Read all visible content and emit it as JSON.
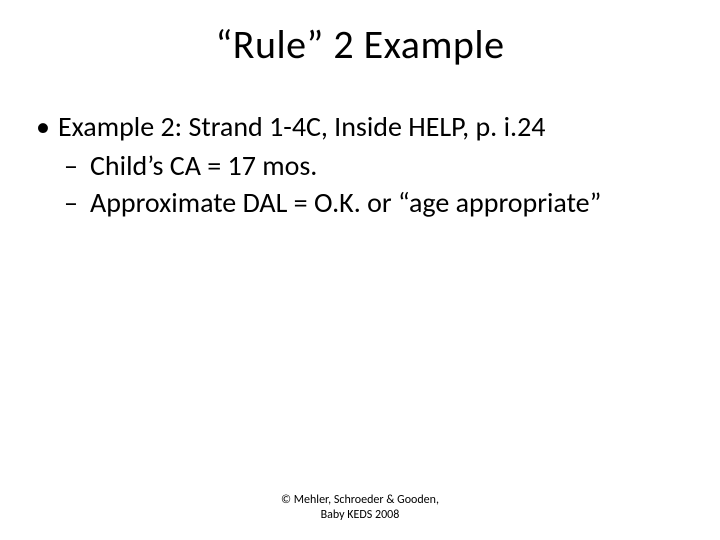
{
  "slide": {
    "title": "“Rule” 2 Example",
    "bullets": {
      "main": "Example 2:  Strand 1-4C, Inside HELP, p. i.24",
      "sub1": "Child’s CA = 17 mos.",
      "sub2": "Approximate DAL = O.K. or “age appropriate”"
    },
    "footer": {
      "line1": "© Mehler, Schroeder & Gooden,",
      "line2": "Baby KEDS 2008"
    }
  },
  "style": {
    "background_color": "#ffffff",
    "text_color": "#000000",
    "title_fontsize": 40,
    "body_fontsize": 28,
    "footer_fontsize": 12,
    "font_family": "Calibri"
  }
}
